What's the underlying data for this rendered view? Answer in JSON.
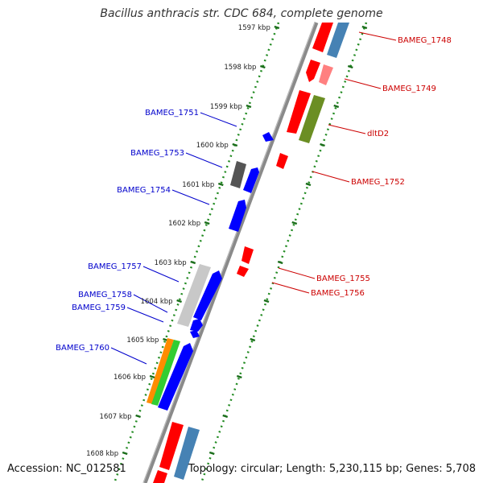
{
  "title": "Bacillus anthracis str. CDC 684, complete genome",
  "footer": {
    "accession": "Accession: NC_012581",
    "topology": "Topology: circular; Length: 5,230,115 bp; Genes: 5,708"
  },
  "colors": {
    "backbone": "#808080",
    "forward_cds": "#ff0000",
    "forward_other": "#ff8080",
    "rna": "#4682b4",
    "olive": "#6b8e23",
    "reverse_cds": "#0000ff",
    "gray_dark": "#555555",
    "gray_light": "#c8c8c8",
    "orange": "#ff8c00",
    "green": "#32cd32",
    "ruler": "#228b22",
    "label_forward": "#cc0000",
    "label_reverse": "#0000cc"
  },
  "ruler_ticks": [
    "1597 kbp",
    "1598 kbp",
    "1599 kbp",
    "1600 kbp",
    "1601 kbp",
    "1602 kbp",
    "1603 kbp",
    "1604 kbp",
    "1605 kbp",
    "1606 kbp",
    "1607 kbp",
    "1608 kbp"
  ],
  "forward_labels": [
    "BAMEG_1748",
    "BAMEG_1749",
    "dltD2",
    "BAMEG_1752",
    "BAMEG_1755",
    "BAMEG_1756"
  ],
  "reverse_labels": [
    "BAMEG_1751",
    "BAMEG_1753",
    "BAMEG_1754",
    "BAMEG_1757",
    "BAMEG_1758",
    "BAMEG_1759",
    "BAMEG_1760"
  ]
}
